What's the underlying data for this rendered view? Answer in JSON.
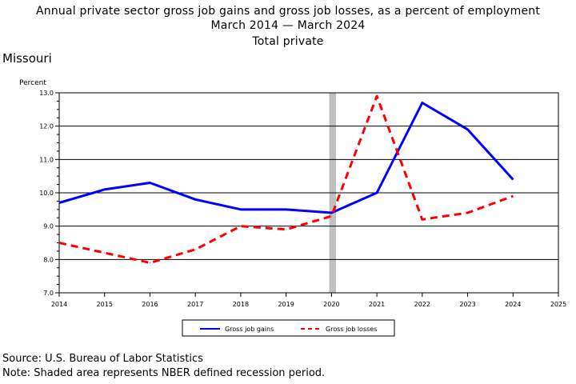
{
  "title": {
    "line1": "Annual private sector gross job gains and gross job losses, as a percent of employment",
    "line2": "March 2014 — March 2024",
    "line3": "Total private"
  },
  "region": "Missouri",
  "footer": {
    "source": "Source: U.S. Bureau of Labor Statistics",
    "note": "Note: Shaded area represents NBER defined recession period."
  },
  "chart_data": {
    "type": "line",
    "ylabel": "Percent",
    "xlabel": "",
    "xlim": [
      2014,
      2025
    ],
    "ylim": [
      7.0,
      13.0
    ],
    "x_ticks": [
      "2014",
      "2015",
      "2016",
      "2017",
      "2018",
      "2019",
      "2020",
      "2021",
      "2022",
      "2023",
      "2024",
      "2025"
    ],
    "y_ticks": [
      "7.0",
      "8.0",
      "9.0",
      "10.0",
      "11.0",
      "12.0",
      "13.0"
    ],
    "grid": "horizontal",
    "legend_position": "bottom-center",
    "recession": {
      "start": 2019.95,
      "end": 2020.1
    },
    "series": [
      {
        "name": "Gross job gains",
        "color": "#0000ff",
        "style": "solid",
        "x": [
          2014,
          2015,
          2016,
          2017,
          2018,
          2019,
          2020,
          2021,
          2022,
          2023,
          2024
        ],
        "values": [
          9.7,
          10.1,
          10.3,
          9.8,
          9.5,
          9.5,
          9.4,
          10.0,
          12.7,
          11.9,
          10.4
        ]
      },
      {
        "name": "Gross job losses",
        "color": "#ff0000",
        "style": "dashed",
        "x": [
          2014,
          2015,
          2016,
          2017,
          2018,
          2019,
          2020,
          2021,
          2022,
          2023,
          2024
        ],
        "values": [
          8.5,
          8.2,
          7.9,
          8.3,
          9.0,
          8.9,
          9.3,
          12.9,
          9.2,
          9.4,
          9.9
        ]
      }
    ]
  }
}
